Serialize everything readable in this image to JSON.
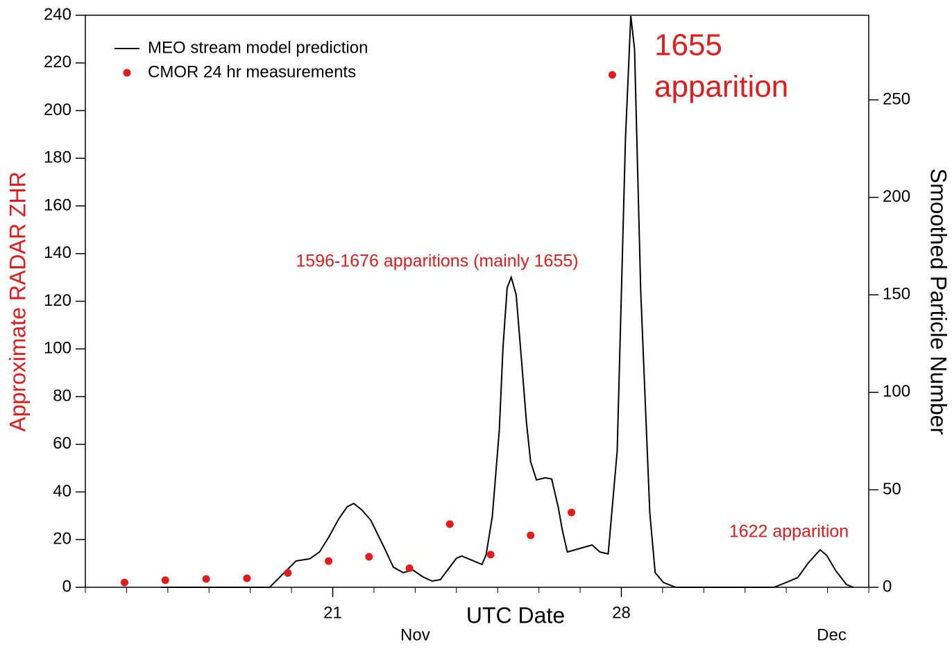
{
  "chart_data": {
    "type": "line",
    "x_label": "UTC Date",
    "y_label": "Approximate RADAR ZHR",
    "y2_label": "Smoothed Particle Number",
    "xlim": [
      15,
      34
    ],
    "xticks": [
      21,
      28
    ],
    "x_minor_ticks": [
      15,
      16,
      17,
      18,
      19,
      20,
      21,
      22,
      23,
      24,
      25,
      26,
      27,
      28,
      29,
      30,
      31,
      32,
      33,
      34
    ],
    "month_labels": [
      {
        "value": 23,
        "label": "Nov"
      },
      {
        "value": 33.1,
        "label": "Dec"
      }
    ],
    "ylim": [
      0,
      240
    ],
    "yticks": [
      0,
      20,
      40,
      60,
      80,
      100,
      120,
      140,
      160,
      180,
      200,
      220,
      240
    ],
    "y2lim": [
      0,
      293.4
    ],
    "y2ticks": [
      0,
      50,
      100,
      150,
      200,
      250
    ],
    "legend": "upper left",
    "series": [
      {
        "name": "MEO stream model prediction",
        "color": "#000000",
        "axis": "y2",
        "kind": "line",
        "x": [
          16.83,
          19.47,
          20.11,
          20.44,
          20.68,
          20.9,
          21.15,
          21.35,
          21.51,
          21.7,
          21.92,
          22.25,
          22.47,
          22.71,
          22.94,
          23.19,
          23.41,
          23.61,
          24,
          24.13,
          24.62,
          24.72,
          24.87,
          25.04,
          25.13,
          25.23,
          25.33,
          25.45,
          25.58,
          25.7,
          25.8,
          25.94,
          26.16,
          26.31,
          26.47,
          26.57,
          26.69,
          27.29,
          27.48,
          27.68,
          27.9,
          28.1,
          28.23,
          28.32,
          28.47,
          28.69,
          28.82,
          29.02,
          29.32,
          31.7,
          32,
          32.28,
          32.53,
          32.82,
          32.98,
          33.2,
          33.46,
          33.63
        ],
        "values": [
          0,
          0,
          13.5,
          14.6,
          18.1,
          25.6,
          35.2,
          41.3,
          43,
          39.8,
          34.5,
          20.3,
          10.3,
          7.5,
          8.9,
          5.3,
          3.2,
          3.9,
          14.9,
          16,
          11.7,
          16.7,
          36.3,
          80.7,
          123,
          153.6,
          159,
          150,
          116,
          84.3,
          64.4,
          55.1,
          56.2,
          55.5,
          40.9,
          29.2,
          18.1,
          21.7,
          18.1,
          17.1,
          70,
          230,
          293,
          276,
          151.8,
          38,
          7.5,
          2.5,
          0,
          0,
          2.5,
          5,
          12.4,
          19.2,
          16.4,
          8.5,
          1.4,
          0
        ]
      },
      {
        "name": "CMOR 24 hr measurements",
        "color": "#e41a1c",
        "axis": "y",
        "kind": "scatter",
        "x": [
          15.95,
          16.94,
          17.93,
          18.92,
          19.91,
          20.9,
          21.88,
          22.86,
          23.84,
          24.83,
          25.8,
          26.79,
          27.78
        ],
        "values": [
          2,
          3,
          3.5,
          3.8,
          6,
          11,
          12.8,
          8,
          26.5,
          13.7,
          21.8,
          31.4,
          215
        ]
      }
    ],
    "annotations": [
      {
        "lines": [
          "1655",
          "apparition"
        ]
      },
      {
        "lines": [
          "1596-1676 apparitions (mainly 1655)"
        ]
      },
      {
        "lines": [
          "1622 apparition"
        ]
      }
    ]
  }
}
